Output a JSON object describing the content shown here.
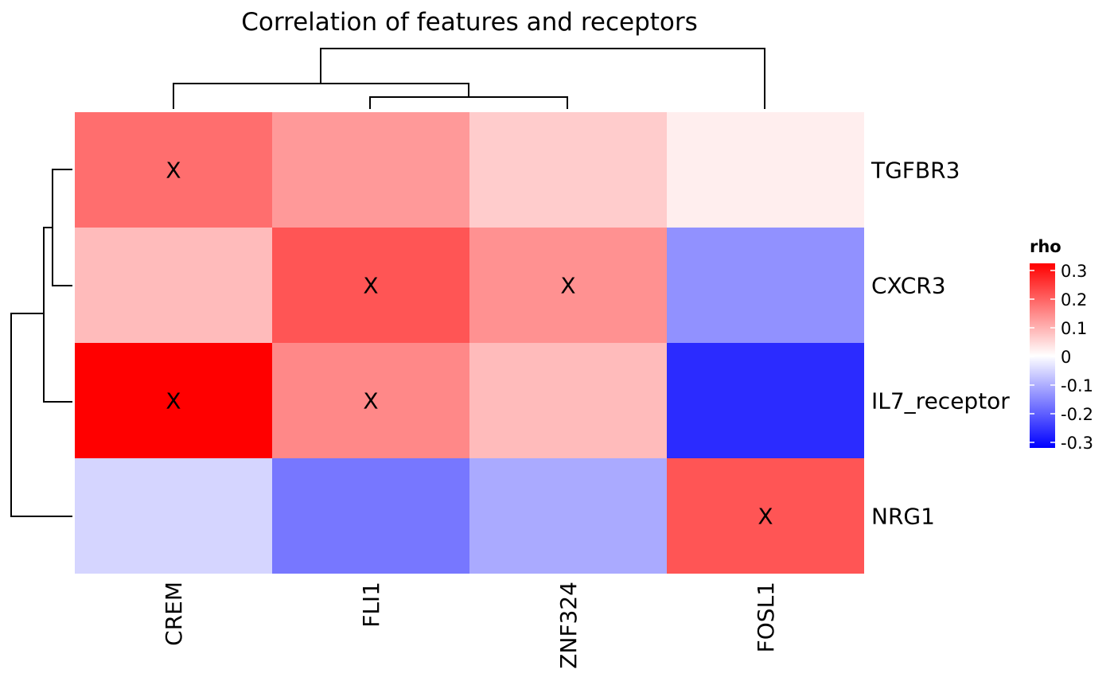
{
  "chart_data": {
    "type": "heatmap",
    "title": "Correlation of features and receptors",
    "rows": [
      "TGFBR3",
      "CXCR3",
      "IL7_receptor",
      "NRG1"
    ],
    "columns": [
      "CREM",
      "FLI1",
      "ZNF324",
      "FOSL1"
    ],
    "values": [
      [
        0.17,
        0.12,
        0.06,
        0.02
      ],
      [
        0.08,
        0.2,
        0.13,
        -0.13
      ],
      [
        0.31,
        0.14,
        0.08,
        -0.25
      ],
      [
        -0.05,
        -0.16,
        -0.1,
        0.2
      ]
    ],
    "significance_marks": [
      [
        true,
        false,
        false,
        false
      ],
      [
        false,
        true,
        true,
        false
      ],
      [
        true,
        true,
        false,
        false
      ],
      [
        false,
        false,
        false,
        true
      ]
    ],
    "mark_symbol": "X",
    "color_scale": {
      "low": "#0000FF",
      "mid": "#FFFFFF",
      "high": "#FF0000",
      "limits": [
        -0.3,
        0.3
      ]
    },
    "legend": {
      "title": "rho",
      "ticks": [
        "0.3",
        "0.2",
        "0.1",
        "0",
        "-0.1",
        "-0.2",
        "-0.3"
      ],
      "tick_values": [
        0.3,
        0.2,
        0.1,
        0,
        -0.1,
        -0.2,
        -0.3
      ],
      "placement": "right"
    },
    "column_dendrogram_order": "((CREM,(FLI1,ZNF324)),FOSL1)",
    "row_dendrogram_order": "(((TGFBR3,CXCR3),IL7_receptor),NRG1)"
  }
}
